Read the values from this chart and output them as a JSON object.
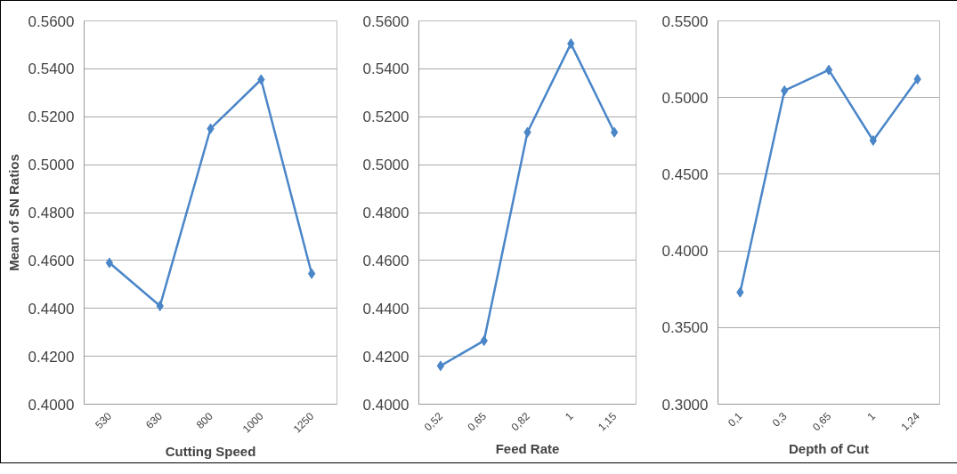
{
  "chart_data": [
    {
      "type": "line",
      "ylabel": "Mean of SN Ratios",
      "xlabel": "Cutting Speed",
      "categories": [
        "530",
        "630",
        "800",
        "1000",
        "1250"
      ],
      "series": [
        {
          "color": "#4a86c8",
          "values": [
            0.459,
            0.441,
            0.515,
            0.5355,
            0.4545
          ]
        }
      ],
      "ylim": [
        0.4,
        0.56
      ],
      "yticks": [
        {
          "value": 0.4,
          "label": "0.4000"
        },
        {
          "value": 0.42,
          "label": "0.4200"
        },
        {
          "value": 0.44,
          "label": "0.4400"
        },
        {
          "value": 0.46,
          "label": "0.4600"
        },
        {
          "value": 0.48,
          "label": "0.4800"
        },
        {
          "value": 0.5,
          "label": "0.5000"
        },
        {
          "value": 0.52,
          "label": "0.5200"
        },
        {
          "value": 0.54,
          "label": "0.5400"
        },
        {
          "value": 0.56,
          "label": "0.5600"
        }
      ],
      "grid": "y",
      "marker": "diamond",
      "line_style": "solid"
    },
    {
      "type": "line",
      "xlabel": "Feed Rate",
      "categories": [
        "0,52",
        "0,65",
        "0,82",
        "1",
        "1,15"
      ],
      "series": [
        {
          "color": "#4a86c8",
          "values": [
            0.416,
            0.4265,
            0.5135,
            0.5505,
            0.5135
          ]
        }
      ],
      "ylim": [
        0.4,
        0.56
      ],
      "yticks": [
        {
          "value": 0.4,
          "label": "0.4000"
        },
        {
          "value": 0.42,
          "label": "0.4200"
        },
        {
          "value": 0.44,
          "label": "0.4400"
        },
        {
          "value": 0.46,
          "label": "0.4600"
        },
        {
          "value": 0.48,
          "label": "0.4800"
        },
        {
          "value": 0.5,
          "label": "0.5000"
        },
        {
          "value": 0.52,
          "label": "0.5200"
        },
        {
          "value": 0.54,
          "label": "0.5400"
        },
        {
          "value": 0.56,
          "label": "0.5600"
        }
      ],
      "grid": "y",
      "marker": "diamond",
      "line_style": "solid"
    },
    {
      "type": "line",
      "xlabel": "Depth of Cut",
      "categories": [
        "0,1",
        "0,3",
        "0,65",
        "1",
        "1,24"
      ],
      "series": [
        {
          "color": "#4a86c8",
          "values": [
            0.373,
            0.5045,
            0.518,
            0.472,
            0.512
          ]
        }
      ],
      "ylim": [
        0.3,
        0.55
      ],
      "yticks": [
        {
          "value": 0.3,
          "label": "0.3000"
        },
        {
          "value": 0.35,
          "label": "0.3500"
        },
        {
          "value": 0.4,
          "label": "0.4000"
        },
        {
          "value": 0.45,
          "label": "0.4500"
        },
        {
          "value": 0.5,
          "label": "0.5000"
        },
        {
          "value": 0.55,
          "label": "0.5500"
        }
      ],
      "grid": "y",
      "marker": "diamond",
      "line_style": "solid"
    }
  ]
}
